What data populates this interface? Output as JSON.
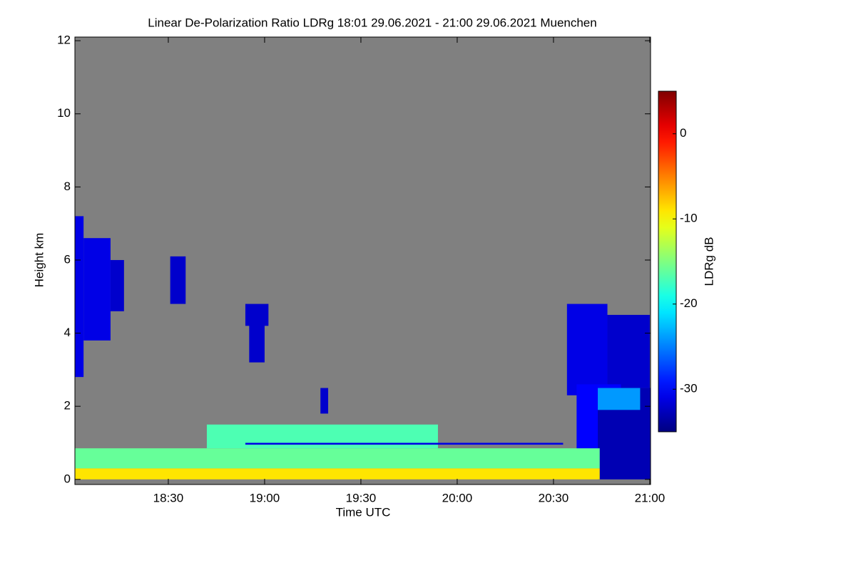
{
  "chart_data": {
    "type": "heatmap",
    "title": "Linear De-Polarization Ratio LDRg   18:01 29.06.2021 - 21:00 29.06.2021 Muenchen",
    "xlabel": "Time UTC",
    "ylabel": "Height km",
    "xlim": [
      18.015,
      21.004
    ],
    "xticks": [
      {
        "value": 18.5,
        "label": "18:30"
      },
      {
        "value": 19.0,
        "label": "19:00"
      },
      {
        "value": 19.5,
        "label": "19:30"
      },
      {
        "value": 20.0,
        "label": "20:00"
      },
      {
        "value": 20.5,
        "label": "20:30"
      },
      {
        "value": 21.0,
        "label": "21:00"
      }
    ],
    "ylim": [
      -0.14,
      12.1
    ],
    "yticks": [
      0,
      2,
      4,
      6,
      8,
      10,
      12
    ],
    "background": "#808080",
    "colorbar": {
      "label": "LDRg dB",
      "clim": [
        -35,
        5
      ],
      "ticks": [
        0,
        -10,
        -20,
        -30
      ],
      "colormap": "jet"
    },
    "cells": [
      {
        "x": [
          18.015,
          18.06
        ],
        "y": [
          2.8,
          7.2
        ],
        "value": -31
      },
      {
        "x": [
          18.06,
          18.2
        ],
        "y": [
          3.8,
          6.6
        ],
        "value": -31
      },
      {
        "x": [
          18.2,
          18.27
        ],
        "y": [
          4.6,
          6.0
        ],
        "value": -32
      },
      {
        "x": [
          18.51,
          18.59
        ],
        "y": [
          4.8,
          6.1
        ],
        "value": -32
      },
      {
        "x": [
          18.9,
          19.02
        ],
        "y": [
          4.2,
          4.8
        ],
        "value": -32
      },
      {
        "x": [
          18.92,
          19.0
        ],
        "y": [
          3.2,
          4.3
        ],
        "value": -32
      },
      {
        "x": [
          19.29,
          19.33
        ],
        "y": [
          1.8,
          2.5
        ],
        "value": -32
      },
      {
        "x": [
          20.57,
          20.78
        ],
        "y": [
          2.3,
          4.8
        ],
        "value": -31
      },
      {
        "x": [
          20.78,
          21.0
        ],
        "y": [
          2.5,
          4.5
        ],
        "value": -32
      },
      {
        "x": [
          20.62,
          20.85
        ],
        "y": [
          0.8,
          2.6
        ],
        "value": -30
      },
      {
        "x": [
          20.73,
          21.004
        ],
        "y": [
          0,
          2.5
        ],
        "value": -33
      },
      {
        "x": [
          20.73,
          20.95
        ],
        "y": [
          1.9,
          2.5
        ],
        "value": -24
      },
      {
        "x": [
          18.015,
          20.74
        ],
        "y": [
          0.3,
          0.85
        ],
        "value": -16
      },
      {
        "x": [
          18.015,
          20.74
        ],
        "y": [
          0,
          0.3
        ],
        "value": -9
      },
      {
        "x": [
          18.7,
          19.9
        ],
        "y": [
          0.85,
          1.5
        ],
        "value": -17
      },
      {
        "x": [
          18.9,
          20.55
        ],
        "y": [
          0.95,
          1.0
        ],
        "value": -31
      }
    ]
  }
}
